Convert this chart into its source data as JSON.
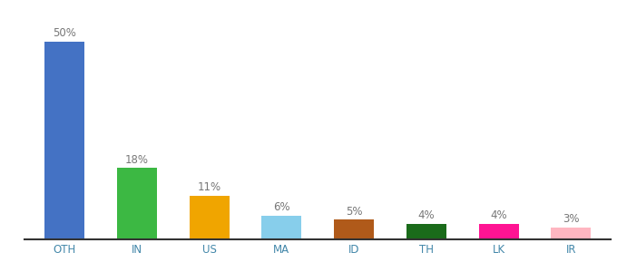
{
  "categories": [
    "OTH",
    "IN",
    "US",
    "MA",
    "ID",
    "TH",
    "LK",
    "IR"
  ],
  "values": [
    50,
    18,
    11,
    6,
    5,
    4,
    4,
    3
  ],
  "bar_colors": [
    "#4472c4",
    "#3cb843",
    "#f0a500",
    "#87ceeb",
    "#b05a1a",
    "#1a6b1a",
    "#ff1493",
    "#ffb6c1"
  ],
  "ylim": [
    0,
    57
  ],
  "background_color": "#ffffff",
  "label_fontsize": 8.5,
  "tick_fontsize": 8.5,
  "label_color": "#777777",
  "tick_color": "#4488aa"
}
